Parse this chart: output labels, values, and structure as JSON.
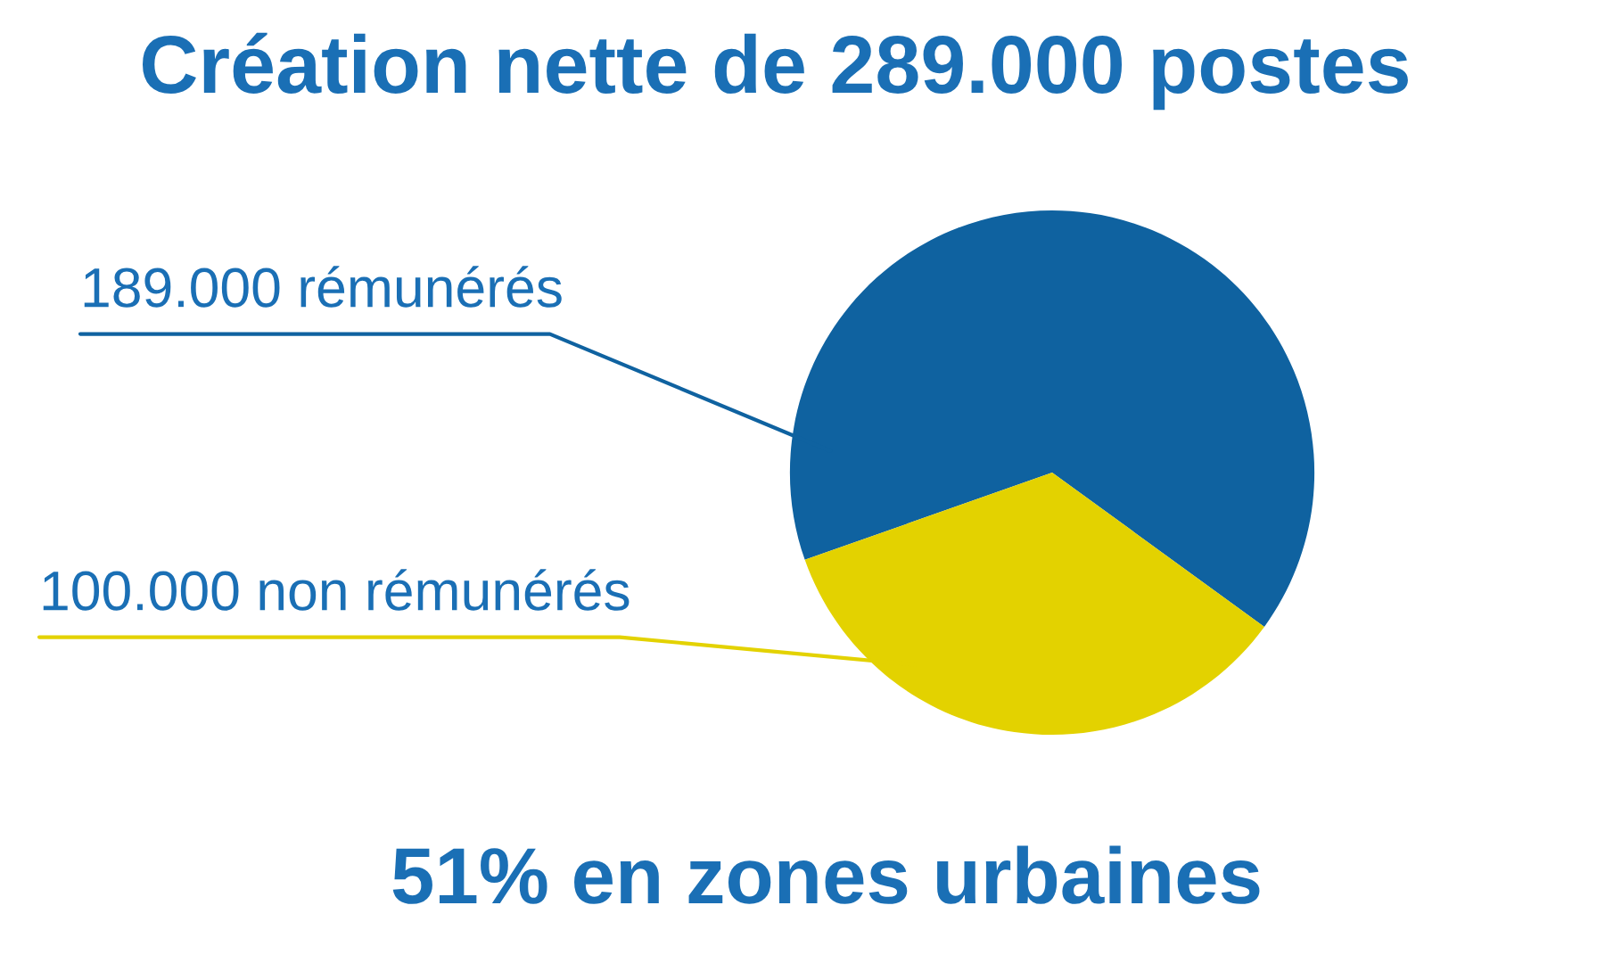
{
  "chart_data": {
    "type": "pie",
    "title": "Création nette de 289.000 postes",
    "categories": [
      "189.000 rémunérés",
      "100.000 non rémunérés"
    ],
    "values": [
      189000,
      100000
    ],
    "colors": [
      "#0f62a0",
      "#e3d200"
    ],
    "annotations": [
      "51% en zones urbaines"
    ]
  }
}
